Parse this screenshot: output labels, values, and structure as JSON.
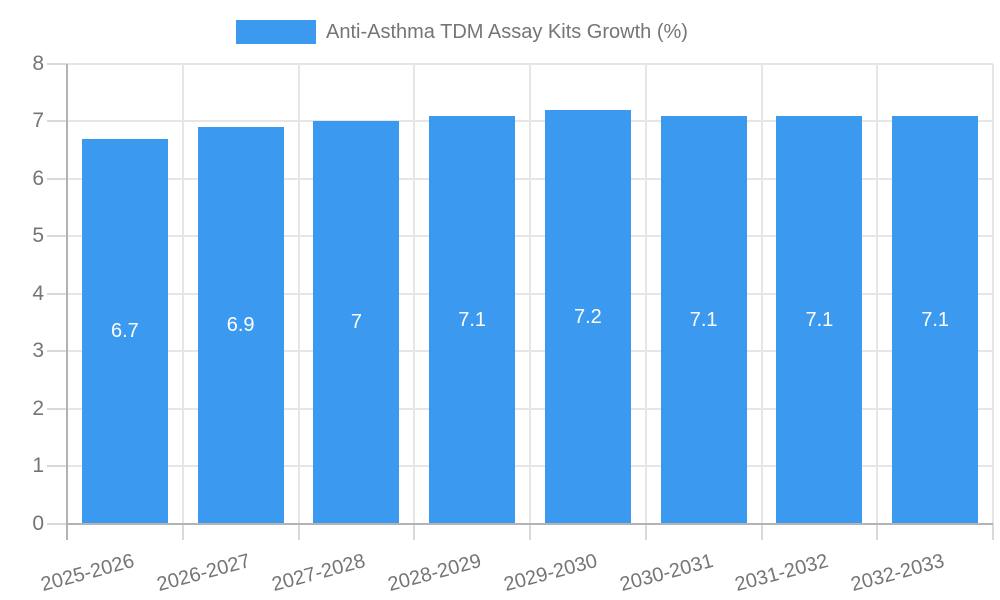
{
  "legend": {
    "label": "Anti-Asthma TDM Assay Kits Growth (%)"
  },
  "colors": {
    "bar": "#3b9af0",
    "bar_label": "#ffffff",
    "text": "#757575",
    "grid": "#e6e6e6",
    "axis": "#b3b3b3",
    "tick": "#d9d9d9",
    "background": "#ffffff"
  },
  "chart_data": {
    "type": "bar",
    "title": "Anti-Asthma TDM Assay Kits Growth (%)",
    "categories": [
      "2025-2026",
      "2026-2027",
      "2027-2028",
      "2028-2029",
      "2029-2030",
      "2030-2031",
      "2031-2032",
      "2032-2033"
    ],
    "values": [
      6.7,
      6.9,
      7,
      7.1,
      7.2,
      7.1,
      7.1,
      7.1
    ],
    "value_labels": [
      "6.7",
      "6.9",
      "7",
      "7.1",
      "7.2",
      "7.1",
      "7.1",
      "7.1"
    ],
    "xlabel": "",
    "ylabel": "",
    "ylim": [
      0,
      8
    ],
    "yticks": [
      0,
      1,
      2,
      3,
      4,
      5,
      6,
      7,
      8
    ],
    "grid": true,
    "legend_position": "top-center",
    "bar_color": "#3b9af0",
    "value_label_color": "#ffffff",
    "x_label_rotation_deg": -15
  }
}
